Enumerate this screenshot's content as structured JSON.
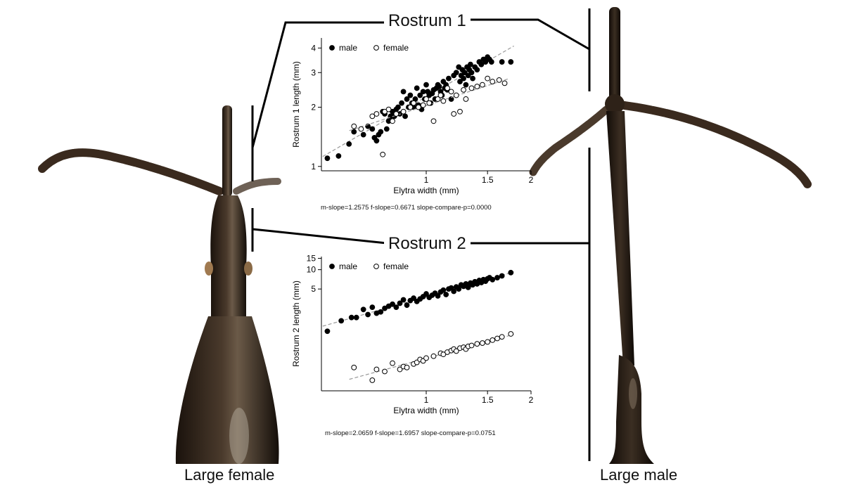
{
  "captions": {
    "left": "Large female",
    "right": "Large male"
  },
  "panels": {
    "rostrum1": {
      "title": "Rostrum 1",
      "stats": "m-slope=1.2575 f-slope=0.6671 slope-compare-p=0.0000"
    },
    "rostrum2": {
      "title": "Rostrum 2",
      "stats": "m-slope=2.0659 f-slope=1.6957 slope-compare-p=0.0751"
    }
  },
  "colors": {
    "male": "#000000",
    "female_fill": "#ffffff",
    "female_stroke": "#000000",
    "fit_line": "#999999",
    "specimen": "#2b2018"
  },
  "chart_data": [
    {
      "type": "scatter",
      "title": "",
      "xlabel": "Elytra width (mm)",
      "ylabel": "Rostrum 1 length (mm)",
      "xscale": "log",
      "yscale": "log",
      "xlim": [
        0.5,
        2.0
      ],
      "ylim": [
        0.95,
        4.5
      ],
      "xticks": [
        1,
        1.5,
        2
      ],
      "yticks": [
        1,
        2,
        3,
        4
      ],
      "legend": "top-left",
      "grid": false,
      "fit_lines": "dashed",
      "series": [
        {
          "name": "male",
          "marker": "filled-circle",
          "x": [
            0.52,
            0.56,
            0.6,
            0.62,
            0.66,
            0.68,
            0.7,
            0.71,
            0.72,
            0.73,
            0.74,
            0.75,
            0.76,
            0.77,
            0.78,
            0.79,
            0.8,
            0.81,
            0.82,
            0.83,
            0.84,
            0.85,
            0.86,
            0.87,
            0.88,
            0.89,
            0.9,
            0.91,
            0.92,
            0.93,
            0.94,
            0.95,
            0.96,
            0.97,
            0.98,
            0.99,
            1.0,
            1.01,
            1.02,
            1.03,
            1.04,
            1.05,
            1.06,
            1.07,
            1.08,
            1.09,
            1.1,
            1.11,
            1.12,
            1.13,
            1.14,
            1.15,
            1.16,
            1.18,
            1.2,
            1.22,
            1.24,
            1.25,
            1.26,
            1.27,
            1.28,
            1.29,
            1.3,
            1.31,
            1.32,
            1.33,
            1.34,
            1.35,
            1.36,
            1.38,
            1.4,
            1.42,
            1.44,
            1.46,
            1.48,
            1.5,
            1.52,
            1.54,
            1.65,
            1.75
          ],
          "y": [
            1.1,
            1.13,
            1.3,
            1.5,
            1.45,
            1.6,
            1.55,
            1.4,
            1.35,
            1.45,
            1.5,
            1.9,
            1.85,
            1.55,
            1.7,
            1.8,
            1.9,
            1.8,
            1.95,
            2.0,
            1.85,
            2.1,
            2.4,
            1.8,
            2.2,
            2.0,
            2.3,
            2.1,
            2.0,
            2.2,
            2.5,
            2.05,
            2.3,
            1.95,
            2.4,
            2.2,
            2.6,
            2.4,
            2.3,
            2.1,
            2.35,
            2.45,
            2.2,
            2.5,
            2.6,
            2.55,
            2.4,
            2.3,
            2.7,
            2.5,
            2.6,
            2.45,
            2.8,
            2.2,
            2.9,
            3.0,
            3.2,
            2.7,
            2.9,
            3.1,
            2.8,
            3.0,
            2.6,
            3.2,
            2.9,
            3.1,
            3.3,
            3.0,
            2.8,
            3.2,
            3.1,
            3.4,
            3.3,
            3.5,
            3.4,
            3.6,
            3.5,
            3.4,
            3.4,
            3.4
          ]
        },
        {
          "name": "female",
          "marker": "open-circle",
          "x": [
            0.62,
            0.65,
            0.7,
            0.72,
            0.75,
            0.76,
            0.78,
            0.8,
            0.82,
            0.86,
            0.9,
            0.92,
            0.95,
            0.98,
            1.0,
            1.02,
            1.05,
            1.08,
            1.1,
            1.12,
            1.15,
            1.18,
            1.2,
            1.22,
            1.25,
            1.28,
            1.3,
            1.35,
            1.4,
            1.45,
            1.5,
            1.55,
            1.62,
            1.68
          ],
          "y": [
            1.6,
            1.55,
            1.8,
            1.85,
            1.15,
            1.9,
            1.95,
            1.7,
            1.85,
            1.9,
            2.0,
            2.1,
            2.0,
            2.05,
            2.2,
            2.1,
            1.7,
            2.2,
            2.3,
            2.15,
            2.5,
            2.4,
            1.85,
            2.3,
            1.9,
            2.45,
            2.2,
            2.5,
            2.55,
            2.6,
            2.8,
            2.7,
            2.75,
            2.65
          ]
        }
      ]
    },
    {
      "type": "scatter",
      "title": "",
      "xlabel": "Elytra width (mm)",
      "ylabel": "Rostrum 2 length (mm)",
      "xscale": "log",
      "yscale": "log",
      "xlim": [
        0.5,
        2.0
      ],
      "ylim": [
        0.13,
        16
      ],
      "xticks": [
        1,
        1.5,
        2
      ],
      "yticks": [
        5,
        10,
        15
      ],
      "legend": "top-left",
      "grid": false,
      "fit_lines": "dashed",
      "series": [
        {
          "name": "male",
          "marker": "filled-circle",
          "x": [
            0.52,
            0.57,
            0.61,
            0.63,
            0.66,
            0.68,
            0.7,
            0.72,
            0.74,
            0.76,
            0.78,
            0.8,
            0.82,
            0.84,
            0.86,
            0.88,
            0.9,
            0.92,
            0.94,
            0.96,
            0.98,
            1.0,
            1.02,
            1.04,
            1.06,
            1.08,
            1.1,
            1.12,
            1.14,
            1.16,
            1.18,
            1.2,
            1.22,
            1.24,
            1.26,
            1.28,
            1.3,
            1.32,
            1.34,
            1.36,
            1.38,
            1.4,
            1.42,
            1.44,
            1.46,
            1.48,
            1.5,
            1.52,
            1.55,
            1.6,
            1.65,
            1.75
          ],
          "y": [
            1.1,
            1.6,
            1.8,
            1.8,
            2.4,
            2.0,
            2.6,
            2.1,
            2.2,
            2.5,
            2.7,
            2.9,
            2.6,
            3.0,
            3.4,
            2.8,
            3.3,
            3.6,
            3.2,
            3.5,
            3.8,
            4.2,
            3.7,
            4.0,
            4.3,
            3.9,
            4.5,
            4.8,
            4.1,
            5.0,
            5.2,
            4.6,
            5.4,
            5.0,
            5.8,
            5.5,
            6.0,
            5.3,
            6.2,
            5.8,
            6.5,
            6.0,
            6.8,
            6.3,
            7.0,
            6.6,
            7.2,
            7.5,
            7.0,
            7.5,
            8.0,
            9.0
          ]
        },
        {
          "name": "female",
          "marker": "open-circle",
          "x": [
            0.62,
            0.7,
            0.72,
            0.76,
            0.8,
            0.84,
            0.86,
            0.88,
            0.92,
            0.94,
            0.96,
            0.98,
            1.0,
            1.05,
            1.1,
            1.12,
            1.15,
            1.18,
            1.2,
            1.22,
            1.25,
            1.28,
            1.3,
            1.32,
            1.35,
            1.4,
            1.45,
            1.5,
            1.55,
            1.6,
            1.65,
            1.75
          ],
          "y": [
            0.3,
            0.19,
            0.28,
            0.26,
            0.35,
            0.28,
            0.31,
            0.3,
            0.34,
            0.36,
            0.4,
            0.38,
            0.42,
            0.45,
            0.5,
            0.48,
            0.52,
            0.55,
            0.58,
            0.54,
            0.6,
            0.62,
            0.58,
            0.64,
            0.66,
            0.7,
            0.72,
            0.75,
            0.8,
            0.85,
            0.9,
            1.0
          ]
        }
      ]
    }
  ]
}
